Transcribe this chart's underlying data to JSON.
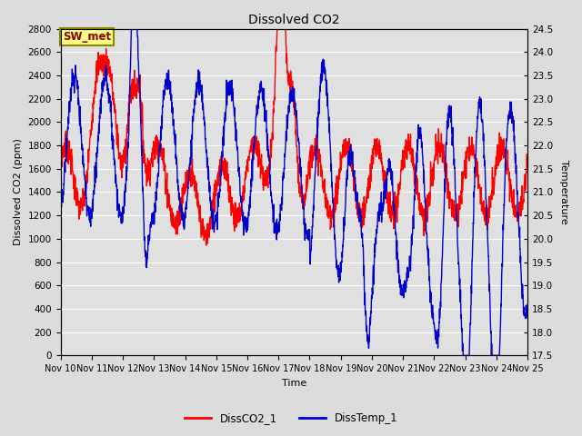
{
  "title": "Dissolved CO2",
  "xlabel": "Time",
  "ylabel_left": "Dissolved CO2 (ppm)",
  "ylabel_right": "Temperature",
  "annotation": "SW_met",
  "legend": [
    "DissCO2_1",
    "DissTemp_1"
  ],
  "co2_color": "#FF0000",
  "temp_color": "#0000CD",
  "co2_ylim": [
    0,
    2800
  ],
  "temp_ylim": [
    17.5,
    24.5
  ],
  "fig_bg_color": "#DCDCDC",
  "plot_bg_color": "#E0E0E0",
  "x_ticks": [
    "Nov 10",
    "Nov 11",
    "Nov 12",
    "Nov 13",
    "Nov 14",
    "Nov 15",
    "Nov 16",
    "Nov 17",
    "Nov 18",
    "Nov 19",
    "Nov 20",
    "Nov 21",
    "Nov 22",
    "Nov 23",
    "Nov 24",
    "Nov 25"
  ],
  "co2_yticks": [
    0,
    200,
    400,
    600,
    800,
    1000,
    1200,
    1400,
    1600,
    1800,
    2000,
    2200,
    2400,
    2600,
    2800
  ],
  "temp_yticks": [
    17.5,
    18.0,
    18.5,
    19.0,
    19.5,
    20.0,
    20.5,
    21.0,
    21.5,
    22.0,
    22.5,
    23.0,
    23.5,
    24.0,
    24.5
  ],
  "linewidth": 1.0,
  "figsize": [
    6.4,
    4.8
  ],
  "dpi": 100
}
